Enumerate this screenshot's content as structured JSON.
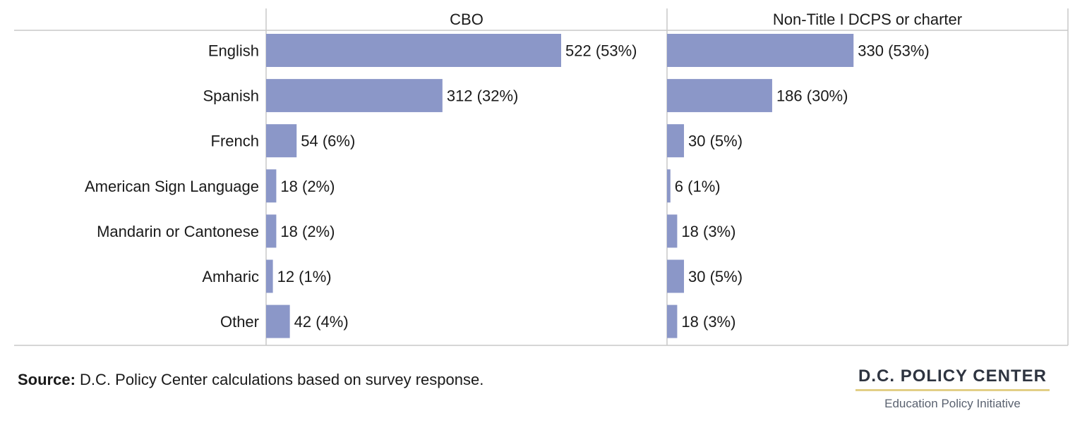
{
  "chart_data": {
    "type": "bar",
    "orientation": "horizontal",
    "categories": [
      "English",
      "Spanish",
      "French",
      "American Sign Language",
      "Mandarin or Cantonese",
      "Amharic",
      "Other"
    ],
    "panels": [
      {
        "title": "CBO",
        "values": [
          522,
          312,
          54,
          18,
          18,
          12,
          42
        ],
        "labels": [
          "522 (53%)",
          "312 (32%)",
          "54 (6%)",
          "18 (2%)",
          "18 (2%)",
          "12 (1%)",
          "42 (4%)"
        ]
      },
      {
        "title": "Non-Title I DCPS or charter",
        "values": [
          330,
          186,
          30,
          6,
          18,
          30,
          18
        ],
        "labels": [
          "330 (53%)",
          "186 (30%)",
          "30 (5%)",
          "6 (1%)",
          "18 (3%)",
          "30 (5%)",
          "18 (3%)"
        ]
      }
    ],
    "bar_color": "#8b97c8",
    "grid": false,
    "legend": "none"
  },
  "footer": {
    "source_label": "Source:",
    "source_text": " D.C. Policy Center calculations based on survey response."
  },
  "brand": {
    "name": "D.C. POLICY CENTER",
    "subtitle": "Education Policy Initiative",
    "accent_color": "#e2cf86"
  }
}
